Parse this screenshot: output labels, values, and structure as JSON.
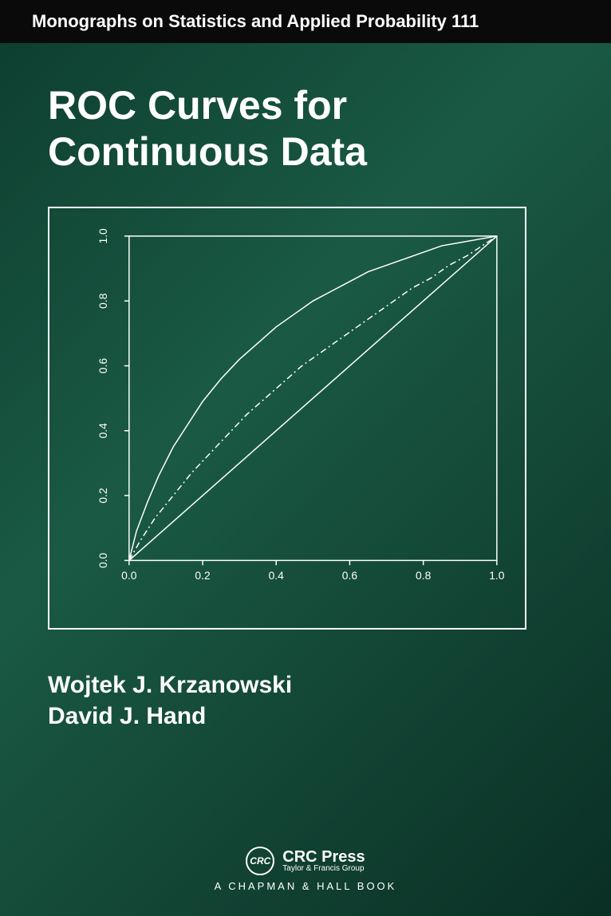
{
  "series": "Monographs on Statistics and Applied Probability 111",
  "title_line1": "ROC Curves for",
  "title_line2": "Continuous Data",
  "authors": {
    "author1": "Wojtek J. Krzanowski",
    "author2": "David J. Hand"
  },
  "publisher": {
    "logo_text": "CRC",
    "name": "CRC Press",
    "tagline": "Taylor & Francis Group",
    "imprint": "A CHAPMAN & HALL BOOK"
  },
  "chart": {
    "type": "line",
    "xlim": [
      0,
      1
    ],
    "ylim": [
      0,
      1
    ],
    "xticks": [
      0.0,
      0.2,
      0.4,
      0.6,
      0.8,
      1.0
    ],
    "yticks": [
      0.0,
      0.2,
      0.4,
      0.6,
      0.8,
      1.0
    ],
    "xtick_labels": [
      "0.0",
      "0.2",
      "0.4",
      "0.6",
      "0.8",
      "1.0"
    ],
    "ytick_labels": [
      "0.0",
      "0.2",
      "0.4",
      "0.6",
      "0.8",
      "1.0"
    ],
    "line_color": "#ffffff",
    "axis_color": "#ffffff",
    "tick_color": "#ffffff",
    "label_color": "#ffffff",
    "label_fontsize": 14,
    "border_color": "#ffffff",
    "background_color": "transparent",
    "curves": [
      {
        "name": "diagonal",
        "style": "solid",
        "width": 1.5,
        "points": [
          [
            0,
            0
          ],
          [
            1,
            1
          ]
        ]
      },
      {
        "name": "roc_upper",
        "style": "solid",
        "width": 1.5,
        "points": [
          [
            0,
            0
          ],
          [
            0.02,
            0.09
          ],
          [
            0.05,
            0.18
          ],
          [
            0.08,
            0.26
          ],
          [
            0.12,
            0.35
          ],
          [
            0.16,
            0.42
          ],
          [
            0.2,
            0.49
          ],
          [
            0.25,
            0.56
          ],
          [
            0.3,
            0.62
          ],
          [
            0.35,
            0.67
          ],
          [
            0.4,
            0.72
          ],
          [
            0.45,
            0.76
          ],
          [
            0.5,
            0.8
          ],
          [
            0.55,
            0.83
          ],
          [
            0.6,
            0.86
          ],
          [
            0.65,
            0.89
          ],
          [
            0.7,
            0.91
          ],
          [
            0.75,
            0.93
          ],
          [
            0.8,
            0.95
          ],
          [
            0.85,
            0.97
          ],
          [
            0.9,
            0.98
          ],
          [
            0.95,
            0.99
          ],
          [
            1,
            1
          ]
        ]
      },
      {
        "name": "roc_middle",
        "style": "dash-dot",
        "width": 1.5,
        "dasharray": "8 4 2 4",
        "points": [
          [
            0,
            0
          ],
          [
            0.03,
            0.06
          ],
          [
            0.07,
            0.13
          ],
          [
            0.12,
            0.2
          ],
          [
            0.17,
            0.27
          ],
          [
            0.22,
            0.33
          ],
          [
            0.27,
            0.39
          ],
          [
            0.32,
            0.45
          ],
          [
            0.37,
            0.5
          ],
          [
            0.42,
            0.55
          ],
          [
            0.47,
            0.6
          ],
          [
            0.52,
            0.64
          ],
          [
            0.57,
            0.68
          ],
          [
            0.62,
            0.72
          ],
          [
            0.67,
            0.76
          ],
          [
            0.72,
            0.8
          ],
          [
            0.77,
            0.84
          ],
          [
            0.82,
            0.87
          ],
          [
            0.87,
            0.91
          ],
          [
            0.92,
            0.94
          ],
          [
            0.96,
            0.97
          ],
          [
            1,
            1
          ]
        ]
      }
    ]
  }
}
